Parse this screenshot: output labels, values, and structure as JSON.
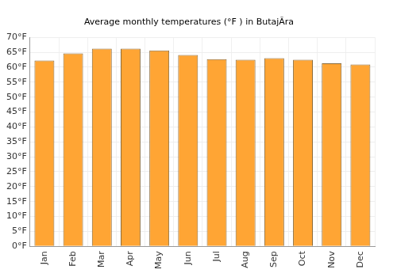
{
  "chart_data": {
    "type": "bar",
    "title": "Average monthly temperatures (°F ) in ButajÃ­ra",
    "categories": [
      "Jan",
      "Feb",
      "Mar",
      "Apr",
      "May",
      "Jun",
      "Jul",
      "Aug",
      "Sep",
      "Oct",
      "Nov",
      "Dec"
    ],
    "values": [
      62.2,
      64.6,
      66.2,
      66.2,
      65.6,
      64.1,
      62.7,
      62.5,
      63.0,
      62.5,
      61.3,
      60.9
    ],
    "color": "#ffa534",
    "ylim": [
      0,
      70
    ],
    "yticks": [
      {
        "value": 0,
        "label": "0°F"
      },
      {
        "value": 5,
        "label": "5°F"
      },
      {
        "value": 10,
        "label": "10°F"
      },
      {
        "value": 15,
        "label": "15°F"
      },
      {
        "value": 20,
        "label": "20°F"
      },
      {
        "value": 25,
        "label": "25°F"
      },
      {
        "value": 30,
        "label": "30°F"
      },
      {
        "value": 35,
        "label": "35°F"
      },
      {
        "value": 40,
        "label": "40°F"
      },
      {
        "value": 45,
        "label": "45°F"
      },
      {
        "value": 50,
        "label": "50°F"
      },
      {
        "value": 55,
        "label": "55°F"
      },
      {
        "value": 60,
        "label": "60°F"
      },
      {
        "value": 65,
        "label": "65°F"
      },
      {
        "value": 70,
        "label": "70°F"
      }
    ],
    "grid": true
  }
}
